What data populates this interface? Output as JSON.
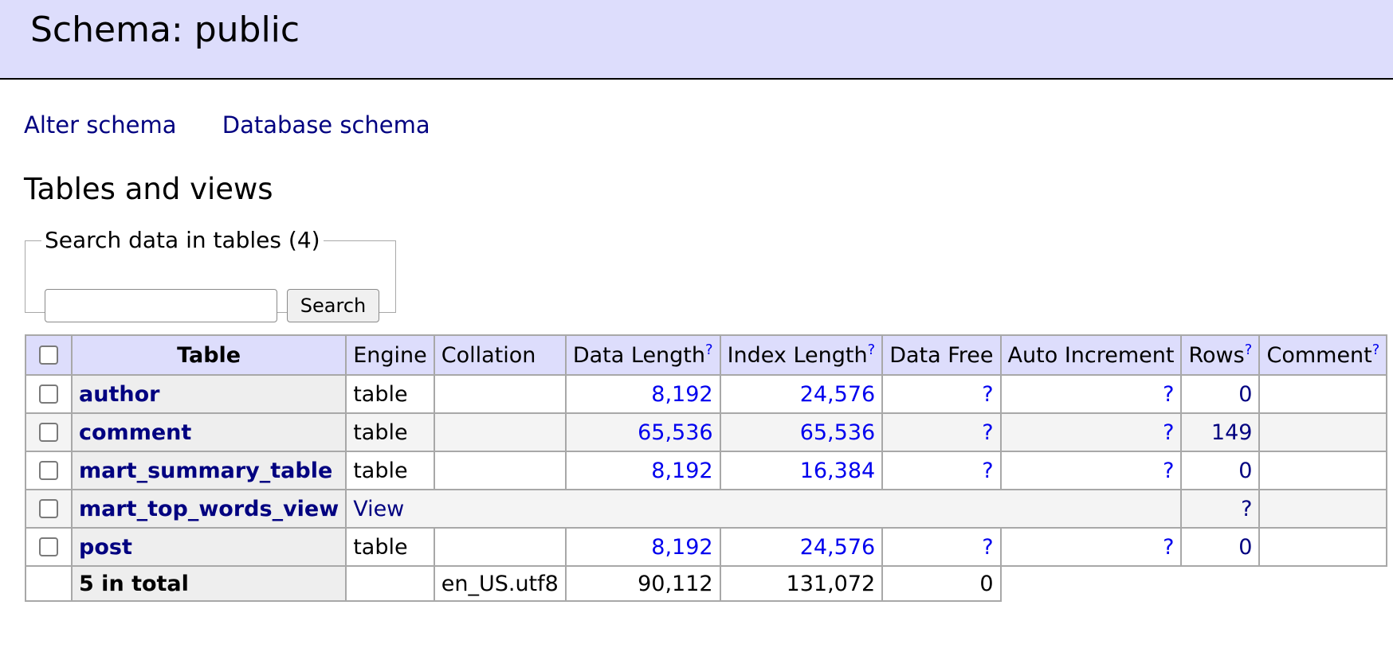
{
  "header": {
    "title": "Schema: public"
  },
  "links": {
    "alter_schema": "Alter schema",
    "database_schema": "Database schema"
  },
  "section": {
    "title": "Tables and views"
  },
  "search": {
    "legend": "Search data in tables (4)",
    "input_value": "",
    "button_label": "Search"
  },
  "table": {
    "columns": {
      "table": "Table",
      "engine": "Engine",
      "collation": "Collation",
      "data_length": "Data Length",
      "index_length": "Index Length",
      "data_free": "Data Free",
      "auto_increment": "Auto Increment",
      "rows": "Rows",
      "comment": "Comment",
      "help": "?"
    },
    "rows": [
      {
        "name": "author",
        "engine": "table",
        "collation": "",
        "data_length": "8,192",
        "index_length": "24,576",
        "data_free": "?",
        "auto_increment": "?",
        "rows": "0",
        "comment": ""
      },
      {
        "name": "comment",
        "engine": "table",
        "collation": "",
        "data_length": "65,536",
        "index_length": "65,536",
        "data_free": "?",
        "auto_increment": "?",
        "rows": "149",
        "comment": ""
      },
      {
        "name": "mart_summary_table",
        "engine": "table",
        "collation": "",
        "data_length": "8,192",
        "index_length": "16,384",
        "data_free": "?",
        "auto_increment": "?",
        "rows": "0",
        "comment": ""
      },
      {
        "name": "mart_top_words_view",
        "engine": "View",
        "rows": "?",
        "comment": ""
      },
      {
        "name": "post",
        "engine": "table",
        "collation": "",
        "data_length": "8,192",
        "index_length": "24,576",
        "data_free": "?",
        "auto_increment": "?",
        "rows": "0",
        "comment": ""
      }
    ],
    "total": {
      "label": "5 in total",
      "engine": "",
      "collation": "en_US.utf8",
      "data_length": "90,112",
      "index_length": "131,072",
      "data_free": "0"
    }
  }
}
